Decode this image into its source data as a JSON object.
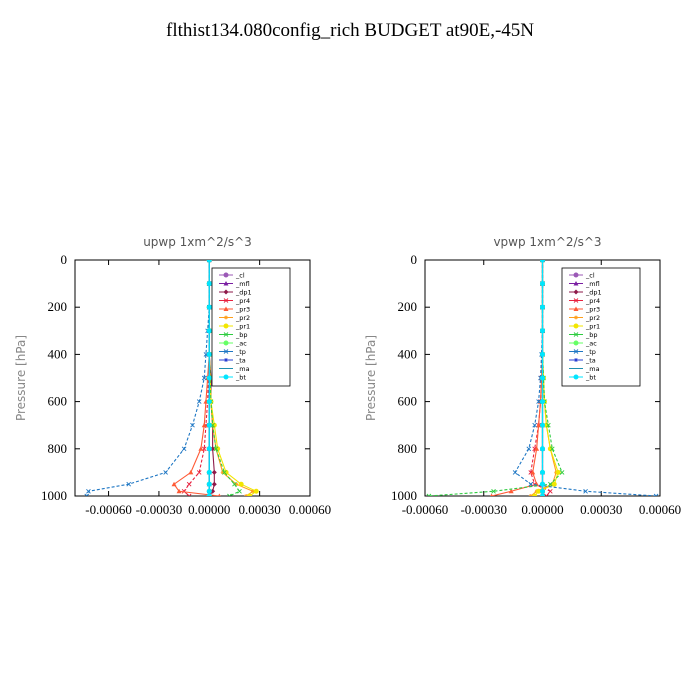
{
  "title": "flthist134.080config_rich  BUDGET at90E,-45N",
  "chart_data": [
    {
      "type": "line",
      "title": "upwp   1xm^2/s^3",
      "ylabel": "Pressure [hPa]",
      "xlim": [
        -0.0008,
        0.0006
      ],
      "ylim": [
        1000,
        0
      ],
      "x_tick_labels": [
        "-0.00060",
        "-0.00030",
        "0.00000",
        "0.00030",
        "0.00060"
      ],
      "x_tick_values": [
        -0.0006,
        -0.0003,
        0,
        0.0003,
        0.0006
      ],
      "y_tick_labels": [
        "0",
        "200",
        "400",
        "600",
        "800",
        "1000"
      ],
      "y_tick_values": [
        0,
        200,
        400,
        600,
        800,
        1000
      ],
      "legend_position": "top-right",
      "series": [
        {
          "name": "_cl",
          "color": "#9b59b6",
          "marker": "circle",
          "x": [
            0,
            0,
            0,
            0,
            0,
            0,
            0,
            0,
            0,
            0,
            0,
            0,
            0
          ],
          "y": [
            0,
            100,
            200,
            300,
            400,
            500,
            600,
            700,
            800,
            900,
            950,
            980,
            1000
          ]
        },
        {
          "name": "_mfl",
          "color": "#7a1fa2",
          "marker": "triangle",
          "x": [
            0,
            0,
            0,
            0,
            0,
            0,
            0,
            0,
            0,
            0,
            0,
            0,
            0
          ],
          "y": [
            0,
            100,
            200,
            300,
            400,
            500,
            600,
            700,
            800,
            900,
            950,
            980,
            1000
          ]
        },
        {
          "name": "_dp1",
          "color": "#8e1a4a",
          "marker": "diamond",
          "x": [
            0,
            0,
            0,
            0,
            0,
            1e-05,
            1e-05,
            2e-05,
            2e-05,
            3e-05,
            3e-05,
            2e-05,
            0
          ],
          "y": [
            0,
            100,
            200,
            300,
            400,
            500,
            600,
            700,
            800,
            900,
            950,
            980,
            1000
          ]
        },
        {
          "name": "_pr4",
          "color": "#e8213f",
          "marker": "x",
          "x": [
            0,
            0,
            0,
            0,
            0,
            -5e-06,
            -1e-05,
            -2e-05,
            -3e-05,
            -6e-05,
            -0.00012,
            -0.00015,
            -0.00012
          ],
          "y": [
            0,
            100,
            200,
            300,
            400,
            500,
            600,
            700,
            800,
            900,
            950,
            980,
            1000
          ]
        },
        {
          "name": "_pr3",
          "color": "#ff5a36",
          "marker": "triangle",
          "x": [
            0,
            0,
            0,
            0,
            0,
            -1e-05,
            -2e-05,
            -3e-05,
            -5e-05,
            -0.00011,
            -0.00021,
            -0.00018,
            6e-05
          ],
          "y": [
            0,
            100,
            200,
            300,
            400,
            500,
            600,
            700,
            800,
            900,
            950,
            980,
            1000
          ]
        },
        {
          "name": "_pr2",
          "color": "#ff9e1b",
          "marker": "star",
          "x": [
            0,
            0,
            0,
            0,
            0,
            5e-06,
            1e-05,
            2e-05,
            4e-05,
            8e-05,
            0.00016,
            0.00026,
            0.00022
          ],
          "y": [
            0,
            100,
            200,
            300,
            400,
            500,
            600,
            700,
            800,
            900,
            950,
            980,
            1000
          ]
        },
        {
          "name": "_pr1",
          "color": "#f2e600",
          "marker": "circle",
          "x": [
            0,
            0,
            0,
            0,
            0,
            5e-06,
            1e-05,
            3e-05,
            5e-05,
            0.0001,
            0.00019,
            0.00028,
            0.00024
          ],
          "y": [
            0,
            100,
            200,
            300,
            400,
            500,
            600,
            700,
            800,
            900,
            950,
            980,
            1000
          ]
        },
        {
          "name": "_bp",
          "color": "#2ecc40",
          "marker": "x",
          "x": [
            0,
            0,
            0,
            0,
            0,
            5e-06,
            1e-05,
            2e-05,
            4e-05,
            9e-05,
            0.00015,
            0.00018,
            0.00012
          ],
          "y": [
            0,
            100,
            200,
            300,
            400,
            500,
            600,
            700,
            800,
            900,
            950,
            980,
            1000
          ]
        },
        {
          "name": "_ac",
          "color": "#66ff66",
          "marker": "circle",
          "x": [
            0,
            0,
            0,
            0,
            0,
            0,
            0,
            0,
            0,
            0,
            0,
            0,
            0
          ],
          "y": [
            0,
            100,
            200,
            300,
            400,
            500,
            600,
            700,
            800,
            900,
            950,
            980,
            1000
          ]
        },
        {
          "name": "_tp",
          "color": "#1f77c4",
          "marker": "x",
          "x": [
            0,
            0,
            0,
            -1e-05,
            -2e-05,
            -3e-05,
            -6e-05,
            -0.0001,
            -0.00015,
            -0.00026,
            -0.00048,
            -0.00072,
            -0.00073
          ],
          "y": [
            0,
            100,
            200,
            300,
            400,
            500,
            600,
            700,
            800,
            900,
            950,
            980,
            1000
          ]
        },
        {
          "name": "_ta",
          "color": "#2a3fd4",
          "marker": "star",
          "x": [
            0,
            0,
            0,
            0,
            0,
            0,
            0,
            0,
            0,
            0,
            0,
            0,
            0
          ],
          "y": [
            0,
            100,
            200,
            300,
            400,
            500,
            600,
            700,
            800,
            900,
            950,
            980,
            1000
          ]
        },
        {
          "name": "_ma",
          "color": "#1e8fb0",
          "marker": "dash",
          "x": [
            0,
            0,
            0,
            0,
            0,
            0,
            0,
            0,
            0,
            0,
            0,
            0,
            0
          ],
          "y": [
            0,
            100,
            200,
            300,
            400,
            500,
            600,
            700,
            800,
            900,
            950,
            980,
            1000
          ]
        },
        {
          "name": "_bt",
          "color": "#00e5ff",
          "marker": "circle",
          "x": [
            0,
            0,
            0,
            0,
            0,
            0,
            0,
            0,
            0,
            0,
            0,
            0,
            0
          ],
          "y": [
            0,
            100,
            200,
            300,
            400,
            500,
            600,
            700,
            800,
            900,
            950,
            980,
            1000
          ]
        }
      ]
    },
    {
      "type": "line",
      "title": "vpwp   1xm^2/s^3",
      "ylabel": "Pressure [hPa]",
      "xlim": [
        -0.0006,
        0.0006
      ],
      "ylim": [
        1000,
        0
      ],
      "x_tick_labels": [
        "-0.00060",
        "-0.00030",
        "0.00000",
        "0.00030",
        "0.00060"
      ],
      "x_tick_values": [
        -0.0006,
        -0.0003,
        0,
        0.0003,
        0.0006
      ],
      "y_tick_labels": [
        "0",
        "200",
        "400",
        "600",
        "800",
        "1000"
      ],
      "y_tick_values": [
        0,
        200,
        400,
        600,
        800,
        1000
      ],
      "legend_position": "top-right",
      "series": [
        {
          "name": "_cl",
          "color": "#9b59b6",
          "marker": "circle",
          "x": [
            0,
            0,
            0,
            0,
            0,
            0,
            0,
            0,
            0,
            0,
            0,
            0,
            0
          ],
          "y": [
            0,
            100,
            200,
            300,
            400,
            500,
            600,
            700,
            800,
            900,
            950,
            980,
            1000
          ]
        },
        {
          "name": "_mfl",
          "color": "#7a1fa2",
          "marker": "triangle",
          "x": [
            0,
            0,
            0,
            0,
            0,
            0,
            0,
            0,
            0,
            0,
            0,
            0,
            0
          ],
          "y": [
            0,
            100,
            200,
            300,
            400,
            500,
            600,
            700,
            800,
            900,
            950,
            980,
            1000
          ]
        },
        {
          "name": "_dp1",
          "color": "#8e1a4a",
          "marker": "diamond",
          "x": [
            0,
            0,
            0,
            0,
            0,
            0,
            0,
            0,
            0,
            0,
            0,
            0,
            0
          ],
          "y": [
            0,
            100,
            200,
            300,
            400,
            500,
            600,
            700,
            800,
            900,
            950,
            980,
            1000
          ]
        },
        {
          "name": "_pr4",
          "color": "#e8213f",
          "marker": "x",
          "x": [
            0,
            0,
            0,
            0,
            0,
            -5e-06,
            -1e-05,
            -2e-05,
            -4e-05,
            -6e-05,
            -4e-05,
            4e-05,
            2e-05
          ],
          "y": [
            0,
            100,
            200,
            300,
            400,
            500,
            600,
            700,
            800,
            900,
            950,
            980,
            1000
          ]
        },
        {
          "name": "_pr3",
          "color": "#ff5a36",
          "marker": "triangle",
          "x": [
            0,
            0,
            0,
            0,
            0,
            -5e-06,
            -1e-05,
            -2e-05,
            -3e-05,
            -5e-05,
            -3e-05,
            -0.00016,
            -0.00026
          ],
          "y": [
            0,
            100,
            200,
            300,
            400,
            500,
            600,
            700,
            800,
            900,
            950,
            980,
            1000
          ]
        },
        {
          "name": "_pr2",
          "color": "#ff9e1b",
          "marker": "star",
          "x": [
            0,
            0,
            0,
            0,
            0,
            5e-06,
            1e-05,
            2e-05,
            4e-05,
            7e-05,
            5e-05,
            -3e-05,
            -6e-05
          ],
          "y": [
            0,
            100,
            200,
            300,
            400,
            500,
            600,
            700,
            800,
            900,
            950,
            980,
            1000
          ]
        },
        {
          "name": "_pr1",
          "color": "#f2e600",
          "marker": "circle",
          "x": [
            0,
            0,
            0,
            0,
            0,
            5e-06,
            1e-05,
            2e-05,
            4e-05,
            8e-05,
            6e-05,
            -2e-05,
            -4e-05
          ],
          "y": [
            0,
            100,
            200,
            300,
            400,
            500,
            600,
            700,
            800,
            900,
            950,
            980,
            1000
          ]
        },
        {
          "name": "_bp",
          "color": "#2ecc40",
          "marker": "x",
          "x": [
            0,
            0,
            0,
            0,
            0,
            5e-06,
            1e-05,
            3e-05,
            5e-05,
            0.0001,
            4e-05,
            -0.00025,
            -0.00058
          ],
          "y": [
            0,
            100,
            200,
            300,
            400,
            500,
            600,
            700,
            800,
            900,
            950,
            980,
            1000
          ]
        },
        {
          "name": "_ac",
          "color": "#66ff66",
          "marker": "circle",
          "x": [
            0,
            0,
            0,
            0,
            0,
            0,
            0,
            0,
            0,
            0,
            0,
            0,
            0
          ],
          "y": [
            0,
            100,
            200,
            300,
            400,
            500,
            600,
            700,
            800,
            900,
            950,
            980,
            1000
          ]
        },
        {
          "name": "_tp",
          "color": "#1f77c4",
          "marker": "x",
          "x": [
            0,
            0,
            0,
            0,
            -5e-06,
            -1e-05,
            -2e-05,
            -4e-05,
            -7e-05,
            -0.00014,
            -6e-05,
            0.00022,
            0.00058
          ],
          "y": [
            0,
            100,
            200,
            300,
            400,
            500,
            600,
            700,
            800,
            900,
            950,
            980,
            1000
          ]
        },
        {
          "name": "_ta",
          "color": "#2a3fd4",
          "marker": "star",
          "x": [
            0,
            0,
            0,
            0,
            0,
            0,
            0,
            0,
            0,
            0,
            0,
            0,
            0
          ],
          "y": [
            0,
            100,
            200,
            300,
            400,
            500,
            600,
            700,
            800,
            900,
            950,
            980,
            1000
          ]
        },
        {
          "name": "_ma",
          "color": "#1e8fb0",
          "marker": "dash",
          "x": [
            0,
            0,
            0,
            0,
            0,
            0,
            0,
            0,
            0,
            0,
            0,
            0,
            0
          ],
          "y": [
            0,
            100,
            200,
            300,
            400,
            500,
            600,
            700,
            800,
            900,
            950,
            980,
            1000
          ]
        },
        {
          "name": "_bt",
          "color": "#00e5ff",
          "marker": "circle",
          "x": [
            0,
            0,
            0,
            0,
            0,
            0,
            0,
            0,
            0,
            0,
            0,
            0,
            0
          ],
          "y": [
            0,
            100,
            200,
            300,
            400,
            500,
            600,
            700,
            800,
            900,
            950,
            980,
            1000
          ]
        }
      ]
    }
  ]
}
